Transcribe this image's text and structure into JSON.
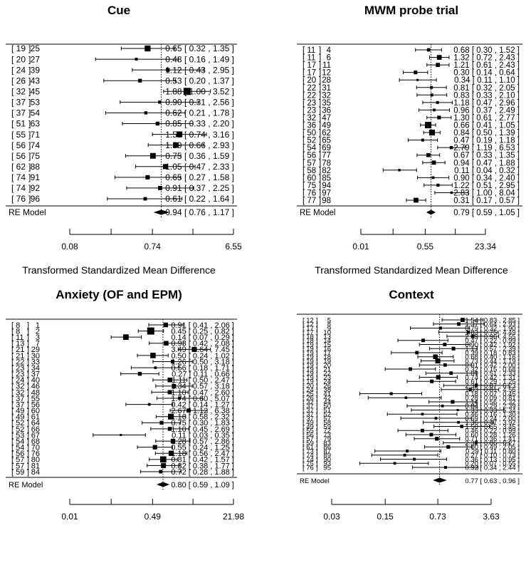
{
  "chart_data": [
    {
      "type": "forest",
      "title": "Cue",
      "xlabel": "Transformed Standardized Mean Difference",
      "x_scale": "log",
      "xlim": [
        0.08,
        6.55
      ],
      "xticks": [
        "0.08",
        "0.74",
        "6.55"
      ],
      "ref_line": 0.94,
      "studies": [
        {
          "a": "19",
          "b": "25",
          "est": 0.65,
          "lo": 0.32,
          "hi": 1.35,
          "text": "0.65 [ 0.32 , 1.35 ]"
        },
        {
          "a": "20",
          "b": "27",
          "est": 0.48,
          "lo": 0.16,
          "hi": 1.49,
          "text": "0.48 [ 0.16 , 1.49 ]"
        },
        {
          "a": "24",
          "b": "39",
          "est": 1.12,
          "lo": 0.43,
          "hi": 2.95,
          "text": "1.12 [ 0.43 , 2.95 ]"
        },
        {
          "a": "26",
          "b": "43",
          "est": 0.53,
          "lo": 0.2,
          "hi": 1.37,
          "text": "0.53 [ 0.20 , 1.37 ]"
        },
        {
          "a": "32",
          "b": "45",
          "est": 1.88,
          "lo": 1.0,
          "hi": 3.52,
          "text": "1.88 [ 1.00 , 3.52 ]"
        },
        {
          "a": "37",
          "b": "53",
          "est": 0.9,
          "lo": 0.31,
          "hi": 2.56,
          "text": "0.90 [ 0.31 , 2.56 ]"
        },
        {
          "a": "37",
          "b": "54",
          "est": 0.62,
          "lo": 0.21,
          "hi": 1.78,
          "text": "0.62 [ 0.21 , 1.78 ]"
        },
        {
          "a": "51",
          "b": "63",
          "est": 0.85,
          "lo": 0.33,
          "hi": 2.2,
          "text": "0.85 [ 0.33 , 2.20 ]"
        },
        {
          "a": "55",
          "b": "71",
          "est": 1.53,
          "lo": 0.74,
          "hi": 3.16,
          "text": "1.53 [ 0.74 , 3.16 ]"
        },
        {
          "a": "56",
          "b": "74",
          "est": 1.39,
          "lo": 0.66,
          "hi": 2.93,
          "text": "1.39 [ 0.66 , 2.93 ]"
        },
        {
          "a": "56",
          "b": "75",
          "est": 0.75,
          "lo": 0.36,
          "hi": 1.59,
          "text": "0.75 [ 0.36 , 1.59 ]"
        },
        {
          "a": "62",
          "b": "88",
          "est": 1.05,
          "lo": 0.47,
          "hi": 2.33,
          "text": "1.05 [ 0.47 , 2.33 ]"
        },
        {
          "a": "74",
          "b": "91",
          "est": 0.65,
          "lo": 0.27,
          "hi": 1.58,
          "text": "0.65 [ 0.27 , 1.58 ]"
        },
        {
          "a": "74",
          "b": "92",
          "est": 0.91,
          "lo": 0.37,
          "hi": 2.25,
          "text": "0.91 [ 0.37 , 2.25 ]"
        },
        {
          "a": "76",
          "b": "96",
          "est": 0.61,
          "lo": 0.22,
          "hi": 1.64,
          "text": "0.61 [ 0.22 , 1.64 ]"
        }
      ],
      "re_model": {
        "label": "RE Model",
        "est": 0.94,
        "lo": 0.76,
        "hi": 1.17,
        "text": "0.94 [ 0.76 , 1.17 ]"
      }
    },
    {
      "type": "forest",
      "title": "MWM probe trial",
      "xlabel": "Transformed Standardized Mean Difference",
      "x_scale": "log",
      "xlim": [
        0.01,
        23.34
      ],
      "xticks": [
        "0.01",
        "0.55",
        "23.34"
      ],
      "ref_line": 0.79,
      "studies": [
        {
          "a": "11",
          "b": "4",
          "est": 0.68,
          "lo": 0.3,
          "hi": 1.52,
          "text": "0.68 [ 0.30 , 1.52 ]"
        },
        {
          "a": "11",
          "b": "6",
          "est": 1.32,
          "lo": 0.72,
          "hi": 2.43,
          "text": "1.32 [ 0.72 , 2.43 ]"
        },
        {
          "a": "17",
          "b": "11",
          "est": 1.21,
          "lo": 0.61,
          "hi": 2.43,
          "text": "1.21 [ 0.61 , 2.43 ]"
        },
        {
          "a": "17",
          "b": "12",
          "est": 0.3,
          "lo": 0.14,
          "hi": 0.64,
          "text": "0.30 [ 0.14 , 0.64 ]"
        },
        {
          "a": "20",
          "b": "28",
          "est": 0.34,
          "lo": 0.11,
          "hi": 1.1,
          "text": "0.34 [ 0.11 , 1.10 ]"
        },
        {
          "a": "22",
          "b": "31",
          "est": 0.81,
          "lo": 0.32,
          "hi": 2.05,
          "text": "0.81 [ 0.32 , 2.05 ]"
        },
        {
          "a": "22",
          "b": "32",
          "est": 0.83,
          "lo": 0.33,
          "hi": 2.1,
          "text": "0.83 [ 0.33 , 2.10 ]"
        },
        {
          "a": "23",
          "b": "35",
          "est": 1.18,
          "lo": 0.47,
          "hi": 2.96,
          "text": "1.18 [ 0.47 , 2.96 ]"
        },
        {
          "a": "23",
          "b": "36",
          "est": 0.96,
          "lo": 0.37,
          "hi": 2.49,
          "text": "0.96 [ 0.37 , 2.49 ]"
        },
        {
          "a": "32",
          "b": "47",
          "est": 1.3,
          "lo": 0.61,
          "hi": 2.77,
          "text": "1.30 [ 0.61 , 2.77 ]"
        },
        {
          "a": "36",
          "b": "49",
          "est": 0.66,
          "lo": 0.41,
          "hi": 1.05,
          "text": "0.66 [ 0.41 , 1.05 ]"
        },
        {
          "a": "50",
          "b": "62",
          "est": 0.84,
          "lo": 0.5,
          "hi": 1.39,
          "text": "0.84 [ 0.50 , 1.39 ]"
        },
        {
          "a": "52",
          "b": "65",
          "est": 0.47,
          "lo": 0.19,
          "hi": 1.18,
          "text": "0.47 [ 0.19 , 1.18 ]"
        },
        {
          "a": "54",
          "b": "69",
          "est": 2.79,
          "lo": 1.19,
          "hi": 6.53,
          "text": "2.79 [ 1.19 , 6.53 ]"
        },
        {
          "a": "56",
          "b": "77",
          "est": 0.67,
          "lo": 0.33,
          "hi": 1.35,
          "text": "0.67 [ 0.33 , 1.35 ]"
        },
        {
          "a": "57",
          "b": "78",
          "est": 0.94,
          "lo": 0.47,
          "hi": 1.88,
          "text": "0.94 [ 0.47 , 1.88 ]"
        },
        {
          "a": "58",
          "b": "82",
          "est": 0.11,
          "lo": 0.04,
          "hi": 0.32,
          "text": "0.11 [ 0.04 , 0.32 ]"
        },
        {
          "a": "60",
          "b": "85",
          "est": 0.9,
          "lo": 0.34,
          "hi": 2.4,
          "text": "0.90 [ 0.34 , 2.40 ]"
        },
        {
          "a": "75",
          "b": "94",
          "est": 1.22,
          "lo": 0.51,
          "hi": 2.95,
          "text": "1.22 [ 0.51 , 2.95 ]"
        },
        {
          "a": "76",
          "b": "97",
          "est": 2.83,
          "lo": 1.0,
          "hi": 8.04,
          "text": "2.83 [ 1.00 , 8.04 ]"
        },
        {
          "a": "77",
          "b": "98",
          "est": 0.31,
          "lo": 0.17,
          "hi": 0.57,
          "text": "0.31 [ 0.17 , 0.57 ]"
        }
      ],
      "re_model": {
        "label": "RE Model",
        "est": 0.79,
        "lo": 0.59,
        "hi": 1.05,
        "text": "0.79 [ 0.59 , 1.05 ]"
      }
    },
    {
      "type": "forest",
      "title": "Anxiety (OF and EPM)",
      "xlabel": "",
      "x_scale": "log",
      "xlim": [
        0.01,
        21.98
      ],
      "xticks": [
        "0.01",
        "0.49",
        "21.98"
      ],
      "ref_line": 0.8,
      "studies": [
        {
          "a": "8",
          "b": "1",
          "est": 0.91,
          "lo": 0.41,
          "hi": 2.06,
          "text": "0.91 [ 0.41 , 2.06 ]"
        },
        {
          "a": "8",
          "b": "2",
          "est": 0.45,
          "lo": 0.25,
          "hi": 0.82,
          "text": "0.45 [ 0.25 , 0.82 ]"
        },
        {
          "a": "11",
          "b": "3",
          "est": 0.14,
          "lo": 0.07,
          "hi": 0.29,
          "text": "0.14 [ 0.07 , 0.29 ]"
        },
        {
          "a": "13",
          "b": "7",
          "est": 0.93,
          "lo": 0.42,
          "hi": 2.08,
          "text": "0.93 [ 0.42 , 2.08 ]"
        },
        {
          "a": "21",
          "b": "29",
          "est": 3.49,
          "lo": 1.64,
          "hi": 7.45,
          "text": "3.49 [ 1.64 , 7.45 ]"
        },
        {
          "a": "21",
          "b": "30",
          "est": 0.5,
          "lo": 0.24,
          "hi": 1.02,
          "text": "0.50 [ 0.24 , 1.02 ]"
        },
        {
          "a": "22",
          "b": "33",
          "est": 1.26,
          "lo": 0.5,
          "hi": 3.18,
          "text": "1.26 [ 0.50 , 3.18 ]"
        },
        {
          "a": "23",
          "b": "34",
          "est": 0.56,
          "lo": 0.18,
          "hi": 1.71,
          "text": "0.56 [ 0.18 , 1.71 ]"
        },
        {
          "a": "23",
          "b": "37",
          "est": 0.27,
          "lo": 0.11,
          "hi": 0.66,
          "text": "0.27 [ 0.11 , 0.66 ]"
        },
        {
          "a": "24",
          "b": "40",
          "est": 1.11,
          "lo": 0.5,
          "hi": 2.47,
          "text": "1.11 [ 0.50 , 2.47 ]"
        },
        {
          "a": "32",
          "b": "46",
          "est": 1.34,
          "lo": 0.57,
          "hi": 3.18,
          "text": "1.34 [ 0.57 , 3.18 ]"
        },
        {
          "a": "32",
          "b": "48",
          "est": 1.1,
          "lo": 0.47,
          "hi": 2.6,
          "text": "1.10 [ 0.47 , 2.60 ]"
        },
        {
          "a": "37",
          "b": "55",
          "est": 1.74,
          "lo": 0.6,
          "hi": 5.07,
          "text": "1.74 [ 0.60 , 5.07 ]"
        },
        {
          "a": "37",
          "b": "56",
          "est": 0.42,
          "lo": 0.14,
          "hi": 1.27,
          "text": "0.42 [ 0.14 , 1.27 ]"
        },
        {
          "a": "49",
          "b": "60",
          "est": 2.67,
          "lo": 1.12,
          "hi": 6.38,
          "text": "2.67 [ 1.12 , 6.38 ]"
        },
        {
          "a": "49",
          "b": "61",
          "est": 1.16,
          "lo": 0.58,
          "hi": 2.32,
          "text": "1.16 [ 0.58 , 2.32 ]"
        },
        {
          "a": "52",
          "b": "64",
          "est": 0.75,
          "lo": 0.3,
          "hi": 1.83,
          "text": "0.75 [ 0.30 , 1.83 ]"
        },
        {
          "a": "52",
          "b": "66",
          "est": 1.1,
          "lo": 0.45,
          "hi": 2.69,
          "text": "1.10 [ 0.45 , 2.69 ]"
        },
        {
          "a": "53",
          "b": "67",
          "est": 0.11,
          "lo": 0.03,
          "hi": 0.35,
          "text": "0.11 [ 0.03 , 0.35 ]"
        },
        {
          "a": "54",
          "b": "68",
          "est": 1.28,
          "lo": 0.57,
          "hi": 2.86,
          "text": "1.28 [ 0.57 , 2.86 ]"
        },
        {
          "a": "54",
          "b": "70",
          "est": 0.55,
          "lo": 0.24,
          "hi": 1.25,
          "text": "0.55 [ 0.24 , 1.25 ]"
        },
        {
          "a": "56",
          "b": "76",
          "est": 1.18,
          "lo": 0.56,
          "hi": 2.47,
          "text": "1.18 [ 0.56 , 2.47 ]"
        },
        {
          "a": "57",
          "b": "80",
          "est": 0.81,
          "lo": 0.42,
          "hi": 1.57,
          "text": "0.81 [ 0.42 , 1.57 ]"
        },
        {
          "a": "57",
          "b": "81",
          "est": 0.82,
          "lo": 0.38,
          "hi": 1.77,
          "text": "0.82 [ 0.38 , 1.77 ]"
        },
        {
          "a": "59",
          "b": "84",
          "est": 0.72,
          "lo": 0.28,
          "hi": 1.88,
          "text": "0.72 [ 0.28 , 1.88 ]"
        }
      ],
      "re_model": {
        "label": "RE Model",
        "est": 0.8,
        "lo": 0.59,
        "hi": 1.09,
        "text": "0.80 [ 0.59 , 1.09 ]"
      }
    },
    {
      "type": "forest",
      "title": "Context",
      "xlabel": "",
      "x_scale": "log",
      "xlim": [
        0.03,
        3.63
      ],
      "xticks": [
        "0.03",
        "0.15",
        "0.73",
        "3.63"
      ],
      "ref_line": 0.77,
      "studies": [
        {
          "a": "12",
          "b": "5",
          "est": 1.54,
          "lo": 0.83,
          "hi": 2.85,
          "text": "1.54 [ 0.83 , 2.85 ]"
        },
        {
          "a": "12",
          "b": "8",
          "est": 1.37,
          "lo": 0.64,
          "hi": 2.93,
          "text": "1.37 [ 0.64 , 2.93 ]"
        },
        {
          "a": "17",
          "b": "9",
          "est": 0.79,
          "lo": 0.32,
          "hi": 1.9,
          "text": "0.79 [ 0.32 , 1.90 ]"
        },
        {
          "a": "17",
          "b": "10",
          "est": 1.83,
          "lo": 0.75,
          "hi": 4.49,
          "text": "1.83 [ 0.75 , 4.49 ]"
        },
        {
          "a": "18",
          "b": "13",
          "est": 2.09,
          "lo": 0.96,
          "hi": 4.55,
          "text": "2.09 [ 0.96 , 4.55 ]"
        },
        {
          "a": "18",
          "b": "14",
          "est": 0.47,
          "lo": 0.22,
          "hi": 0.99,
          "text": "0.47 [ 0.22 , 0.99 ]"
        },
        {
          "a": "19",
          "b": "15",
          "est": 0.9,
          "lo": 0.42,
          "hi": 1.92,
          "text": "0.90 [ 0.42 , 1.92 ]"
        },
        {
          "a": "19",
          "b": "16",
          "est": 1.17,
          "lo": 0.57,
          "hi": 2.39,
          "text": "1.17 [ 0.57 , 2.39 ]"
        },
        {
          "a": "19",
          "b": "17",
          "est": 0.39,
          "lo": 0.18,
          "hi": 0.83,
          "text": "0.39 [ 0.18 , 0.83 ]"
        },
        {
          "a": "19",
          "b": "18",
          "est": 0.68,
          "lo": 0.4,
          "hi": 1.16,
          "text": "0.68 [ 0.40 , 1.16 ]"
        },
        {
          "a": "19",
          "b": "19",
          "est": 0.73,
          "lo": 0.44,
          "hi": 1.19,
          "text": "0.73 [ 0.44 , 1.19 ]"
        },
        {
          "a": "19",
          "b": "20",
          "est": 0.91,
          "lo": 0.42,
          "hi": 2.0,
          "text": "0.91 [ 0.42 , 2.00 ]"
        },
        {
          "a": "19",
          "b": "21",
          "est": 0.32,
          "lo": 0.15,
          "hi": 0.68,
          "text": "0.32 [ 0.15 , 0.68 ]"
        },
        {
          "a": "19",
          "b": "22",
          "est": 1.09,
          "lo": 0.51,
          "hi": 2.33,
          "text": "1.09 [ 0.51 , 2.33 ]"
        },
        {
          "a": "19",
          "b": "23",
          "est": 0.74,
          "lo": 0.42,
          "hi": 1.31,
          "text": "0.74 [ 0.42 , 1.31 ]"
        },
        {
          "a": "19",
          "b": "24",
          "est": 0.61,
          "lo": 0.29,
          "hi": 1.25,
          "text": "0.61 [ 0.29 , 1.25 ]"
        },
        {
          "a": "20",
          "b": "26",
          "est": 2.32,
          "lo": 0.87,
          "hi": 6.23,
          "text": "2.32 [ 0.87 , 6.23 ]"
        },
        {
          "a": "24",
          "b": "38",
          "est": 1.93,
          "lo": 0.81,
          "hi": 4.56,
          "text": "1.93 [ 0.81 , 4.56 ]"
        },
        {
          "a": "25",
          "b": "41",
          "est": 0.18,
          "lo": 0.07,
          "hi": 0.45,
          "text": "0.18 [ 0.07 , 0.45 ]"
        },
        {
          "a": "26",
          "b": "42",
          "est": 0.28,
          "lo": 0.09,
          "hi": 0.81,
          "text": "0.28 [ 0.09 , 0.81 ]"
        },
        {
          "a": "32",
          "b": "44",
          "est": 1.14,
          "lo": 0.56,
          "hi": 2.32,
          "text": "1.14 [ 0.56 , 2.32 ]"
        },
        {
          "a": "37",
          "b": "50",
          "est": 0.84,
          "lo": 0.29,
          "hi": 2.39,
          "text": "0.84 [ 0.29 , 2.39 ]"
        },
        {
          "a": "37",
          "b": "51",
          "est": 1.33,
          "lo": 0.33,
          "hi": 5.34,
          "text": "1.33 [ 0.33 , 5.34 ]"
        },
        {
          "a": "37",
          "b": "52",
          "est": 0.46,
          "lo": 0.16,
          "hi": 1.3,
          "text": "0.46 [ 0.16 , 1.30 ]"
        },
        {
          "a": "37",
          "b": "57",
          "est": 0.69,
          "lo": 0.24,
          "hi": 2.0,
          "text": "0.69 [ 0.24 , 2.00 ]"
        },
        {
          "a": "49",
          "b": "58",
          "est": 1.36,
          "lo": 0.47,
          "hi": 3.92,
          "text": "1.36 [ 0.47 , 3.92 ]"
        },
        {
          "a": "49",
          "b": "59",
          "est": 1.5,
          "lo": 0.65,
          "hi": 3.45,
          "text": "1.50 [ 0.65 , 3.45 ]"
        },
        {
          "a": "55",
          "b": "72",
          "est": 0.46,
          "lo": 0.22,
          "hi": 0.99,
          "text": "0.46 [ 0.22 , 0.99 ]"
        },
        {
          "a": "56",
          "b": "73",
          "est": 0.6,
          "lo": 0.28,
          "hi": 1.26,
          "text": "0.60 [ 0.28 , 1.26 ]"
        },
        {
          "a": "57",
          "b": "79",
          "est": 0.71,
          "lo": 0.36,
          "hi": 1.41,
          "text": "0.71 [ 0.36 , 1.41 ]"
        },
        {
          "a": "59",
          "b": "83",
          "est": 2.32,
          "lo": 0.86,
          "hi": 6.27,
          "text": "2.32 [ 0.86 , 6.27 ]"
        },
        {
          "a": "61",
          "b": "86",
          "est": 1.0,
          "lo": 0.49,
          "hi": 2.05,
          "text": "1.00 [ 0.49 , 2.05 ]"
        },
        {
          "a": "73",
          "b": "87",
          "est": 0.29,
          "lo": 0.11,
          "hi": 0.8,
          "text": "0.29 [ 0.11 , 0.80 ]"
        },
        {
          "a": "74",
          "b": "89",
          "est": 0.27,
          "lo": 0.1,
          "hi": 0.73,
          "text": "0.27 [ 0.10 , 0.73 ]"
        },
        {
          "a": "74",
          "b": "90",
          "est": 0.36,
          "lo": 0.13,
          "hi": 0.95,
          "text": "0.36 [ 0.13 , 0.95 ]"
        },
        {
          "a": "75",
          "b": "93",
          "est": 0.2,
          "lo": 0.07,
          "hi": 0.55,
          "text": "0.20 [ 0.07 , 0.55 ]"
        },
        {
          "a": "76",
          "b": "95",
          "est": 0.92,
          "lo": 0.34,
          "hi": 2.44,
          "text": "0.92 [ 0.34 , 2.44 ]"
        }
      ],
      "re_model": {
        "label": "RE Model",
        "est": 0.77,
        "lo": 0.63,
        "hi": 0.96,
        "text": "0.77 [ 0.63 , 0.96 ]"
      }
    }
  ]
}
